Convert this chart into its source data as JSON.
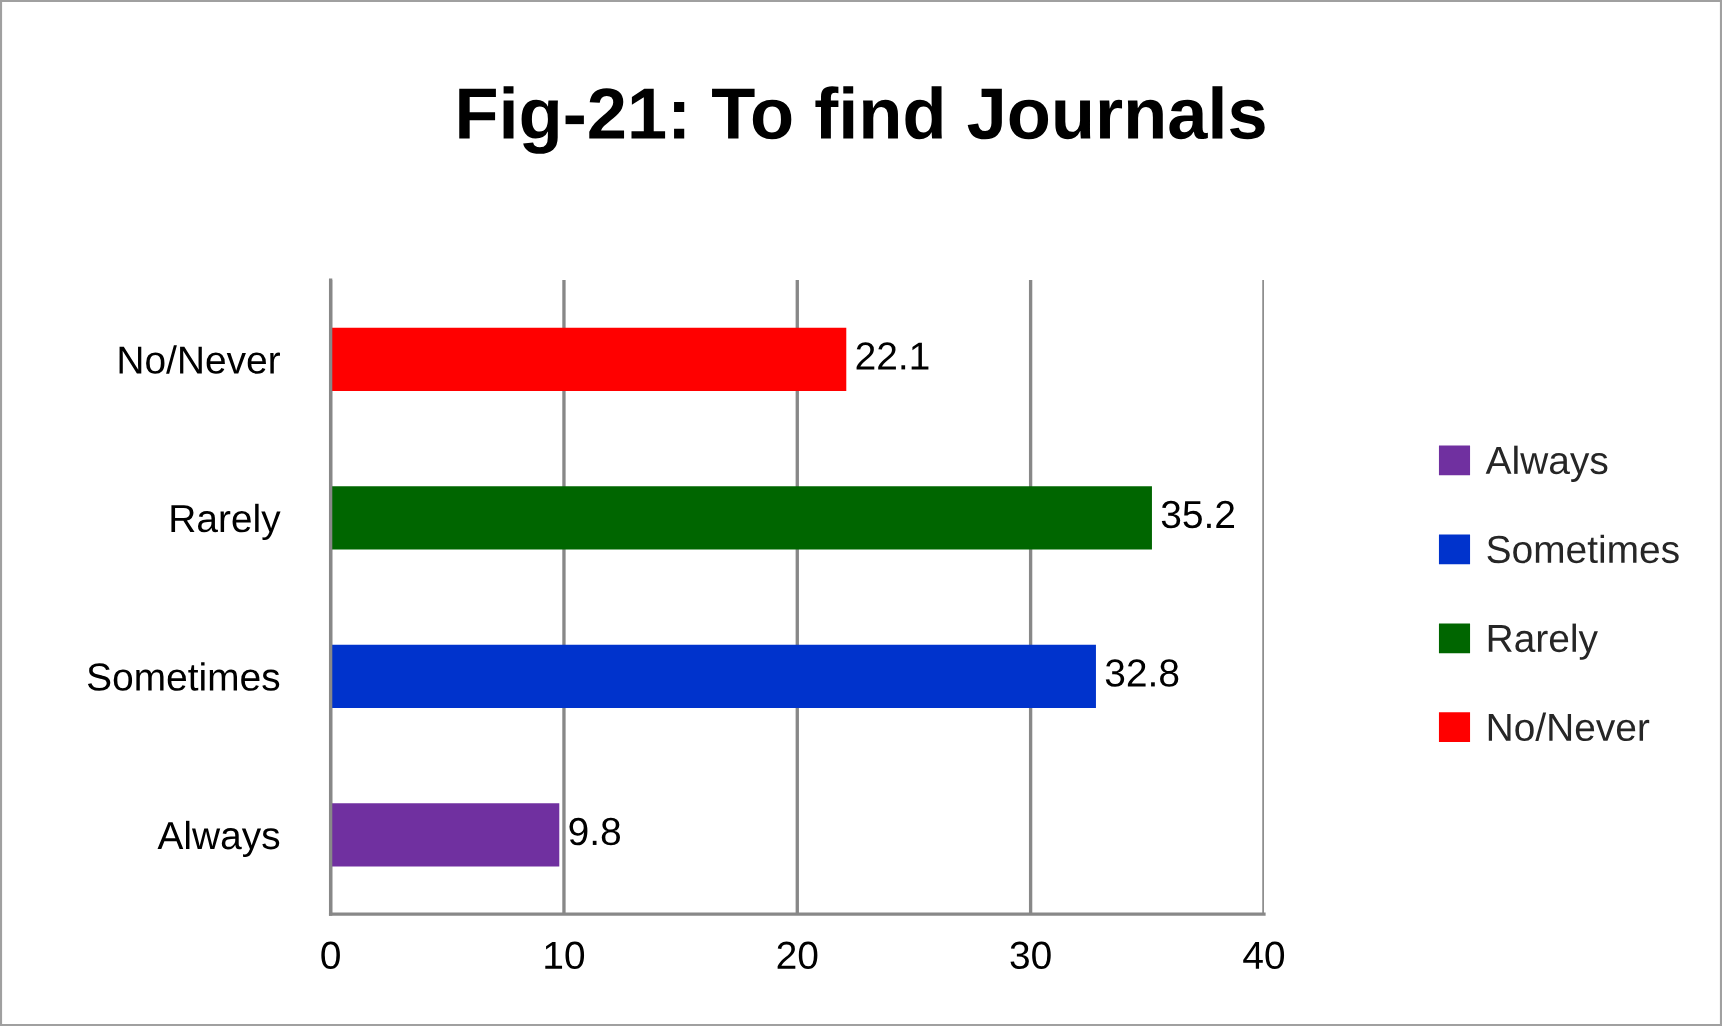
{
  "chart_data": {
    "type": "bar",
    "title": "Fig-21: To find Journals",
    "orientation": "horizontal",
    "stacked": true,
    "categories": [
      "No/Never",
      "Rarely",
      "Sometimes",
      "Always"
    ],
    "series": [
      {
        "name": "Always",
        "color": "#7030a0",
        "values": [
          null,
          null,
          null,
          9.8
        ]
      },
      {
        "name": "Sometimes",
        "color": "#0033cc",
        "values": [
          null,
          null,
          32.8,
          null
        ]
      },
      {
        "name": "Rarely",
        "color": "#006600",
        "values": [
          null,
          35.2,
          null,
          null
        ]
      },
      {
        "name": "No/Never",
        "color": "#ff0000",
        "values": [
          22.1,
          null,
          null,
          null
        ]
      }
    ],
    "xlim": [
      0,
      40
    ],
    "xticks": [
      0,
      10,
      20,
      30,
      40
    ],
    "grid": "x",
    "data_labels": true,
    "legend": "right"
  }
}
